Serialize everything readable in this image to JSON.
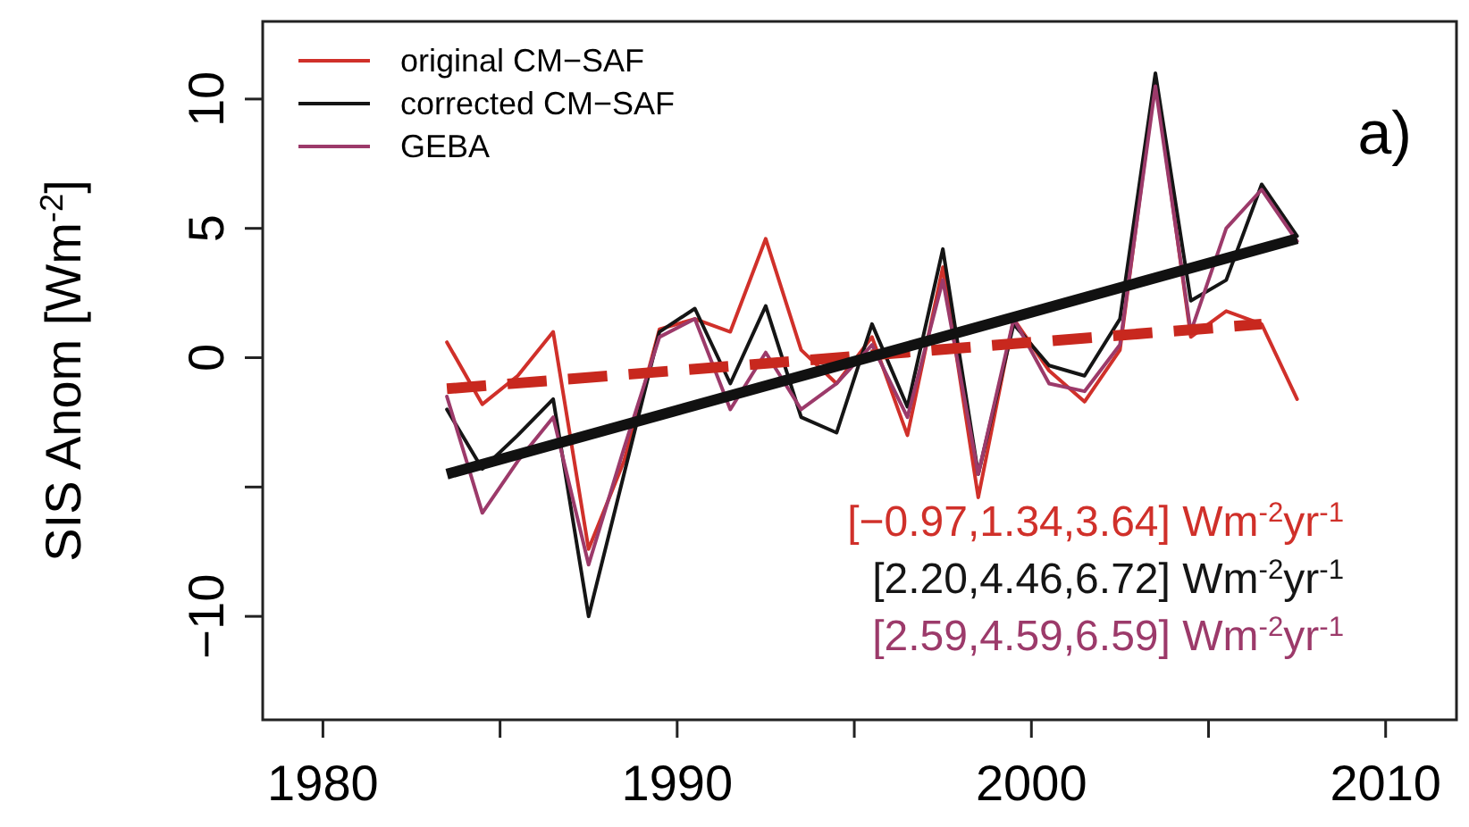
{
  "chart_data": {
    "type": "line",
    "ylabel": "SIS Anom [Wm$^{-2}$]",
    "x": [
      1983.5,
      1984.5,
      1985.5,
      1986.5,
      1987.5,
      1988.5,
      1989.5,
      1990.5,
      1991.5,
      1992.5,
      1993.5,
      1994.5,
      1995.5,
      1996.5,
      1997.5,
      1998.5,
      1999.5,
      2000.5,
      2001.5,
      2002.5,
      2003.5,
      2004.5,
      2005.5,
      2006.5,
      2007.5
    ],
    "series": [
      {
        "name": "original CM−SAF",
        "color": "#d0302a",
        "values": [
          0.6,
          -1.8,
          -0.7,
          1.0,
          -7.4,
          -4.0,
          1.1,
          1.5,
          1.0,
          4.6,
          0.3,
          -1.0,
          0.8,
          -3.0,
          3.5,
          -5.4,
          1.5,
          -0.5,
          -1.7,
          0.3,
          10.8,
          0.8,
          1.8,
          1.3,
          -1.6
        ]
      },
      {
        "name": "corrected CM−SAF",
        "color": "#151515",
        "values": [
          -2.0,
          -4.3,
          -3.0,
          -1.6,
          -10.0,
          -4.5,
          1.0,
          1.9,
          -1.0,
          2.0,
          -2.3,
          -2.9,
          1.3,
          -1.9,
          4.2,
          -4.5,
          1.3,
          -0.3,
          -0.7,
          1.5,
          11.0,
          2.2,
          3.0,
          6.7,
          4.7
        ]
      },
      {
        "name": "GEBA",
        "color": "#9c3a6a",
        "values": [
          -1.5,
          -6.0,
          -4.0,
          -2.3,
          -8.0,
          -3.5,
          0.8,
          1.5,
          -2.0,
          0.2,
          -2.0,
          -1.0,
          0.5,
          -2.3,
          3.0,
          -4.5,
          1.5,
          -1.0,
          -1.3,
          0.5,
          10.5,
          1.0,
          5.0,
          6.5,
          4.5
        ]
      },
      {
        "type": "line",
        "x": [
          1983.5,
          2006.5
        ],
        "values": [
          -1.2,
          1.3
        ],
        "color": "#c8281e",
        "line_style": "dashed"
      },
      {
        "type": "line",
        "x": [
          1983.5,
          2007.5
        ],
        "values": [
          -4.5,
          4.6
        ],
        "color": "#111111"
      }
    ],
    "xlim": [
      1978.3,
      2012
    ],
    "ylim": [
      -14,
      13
    ],
    "xticks": [
      1980,
      {
        "value": 1985,
        "label": null
      },
      1990,
      {
        "value": 1995,
        "label": null
      },
      2000,
      {
        "value": 2005,
        "label": null
      },
      2010
    ],
    "yticks": [
      -10,
      {
        "value": -5,
        "label": null
      },
      0,
      5,
      10
    ],
    "annotations": [
      "a)",
      "[−0.97,1.34,3.64] Wm$^{-2}$yr$^{-1}$",
      "[2.20,4.46,6.72] Wm$^{-2}$yr$^{-1}$",
      "[2.59,4.59,6.59]  Wm$^{-2}$yr$^{-1}$"
    ],
    "legend": "top left",
    "grid": false,
    "line_style": "solid"
  }
}
